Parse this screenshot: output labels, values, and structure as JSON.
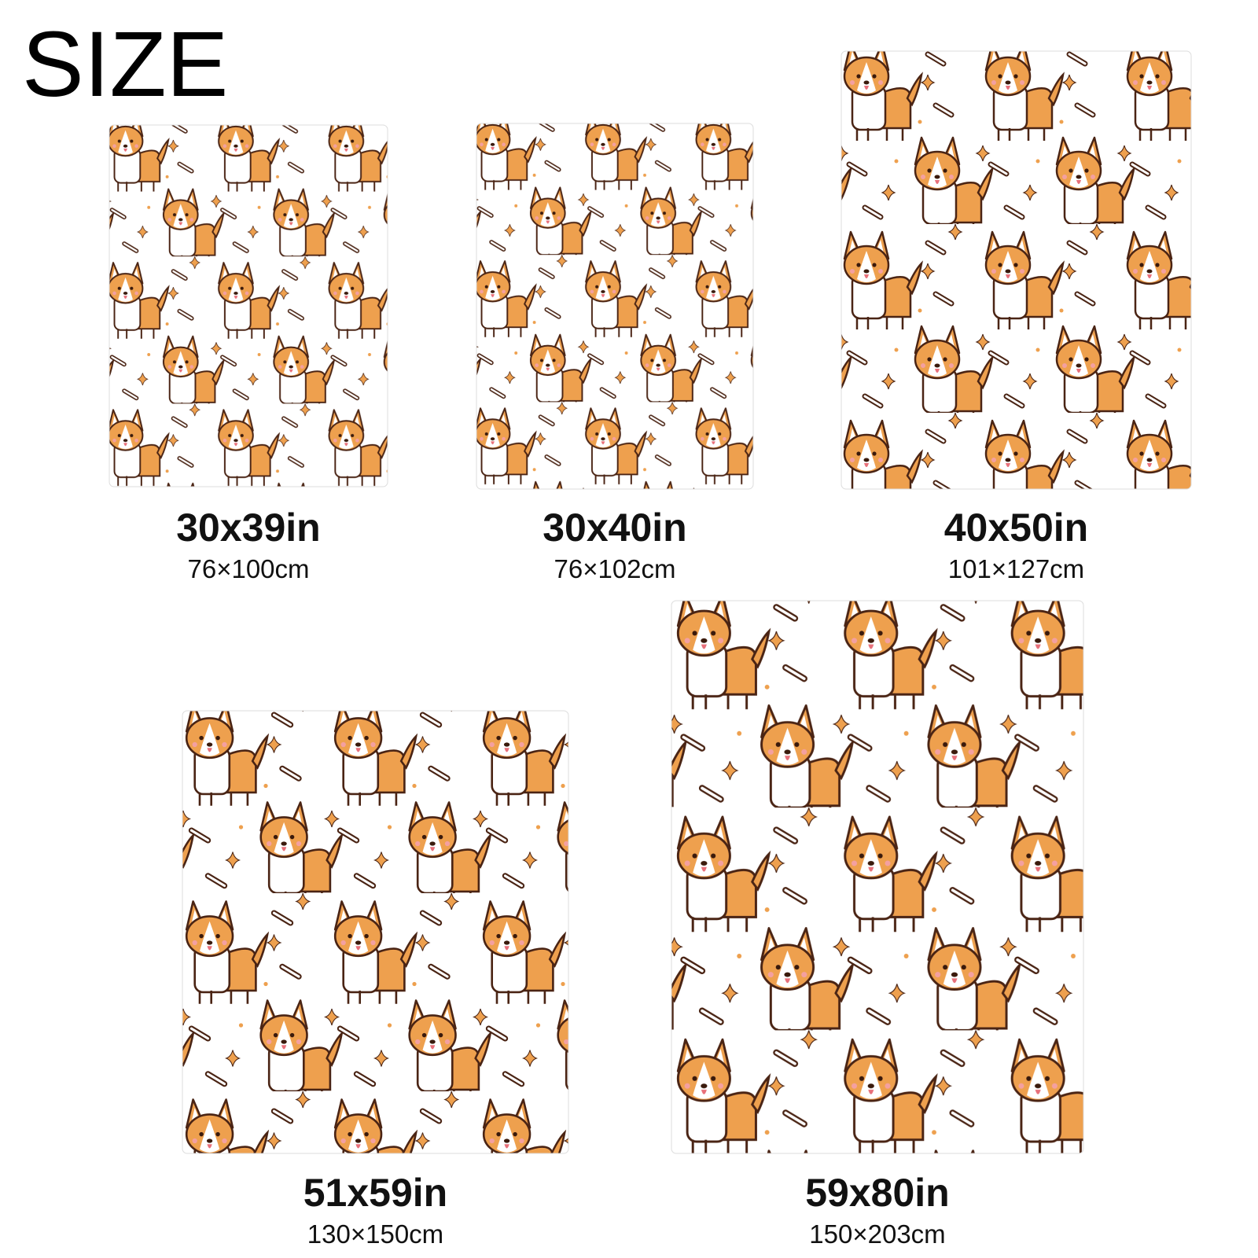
{
  "title": "SIZE",
  "items": [
    {
      "inches": "30x39in",
      "cm": "76×100cm"
    },
    {
      "inches": "30x40in",
      "cm": "76×102cm"
    },
    {
      "inches": "40x50in",
      "cm": "101×127cm"
    },
    {
      "inches": "51x59in",
      "cm": "130×150cm"
    },
    {
      "inches": "59x80in",
      "cm": "150×203cm"
    }
  ]
}
